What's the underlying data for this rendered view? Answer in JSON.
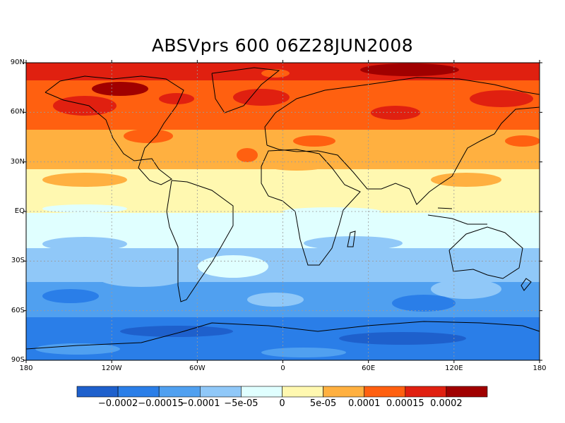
{
  "title": "ABSVprs 600 06Z28JUN2008",
  "map": {
    "lat_ticks": [
      "90N",
      "60N",
      "30N",
      "EQ",
      "30S",
      "60S",
      "90S"
    ],
    "lon_ticks": [
      "180",
      "120W",
      "60W",
      "0",
      "60E",
      "120E",
      "180"
    ]
  },
  "colorbar": {
    "colors": [
      "#1e60cc",
      "#2a7ee8",
      "#50a0f0",
      "#90c8f8",
      "#e0ffff",
      "#fff8b0",
      "#ffb040",
      "#ff6010",
      "#e02010",
      "#a00000"
    ],
    "labels": [
      "-0.0002",
      "-0.00015",
      "-0.0001",
      "-5e-05",
      "0",
      "5e-05",
      "0.0001",
      "0.00015",
      "0.0002"
    ]
  }
}
